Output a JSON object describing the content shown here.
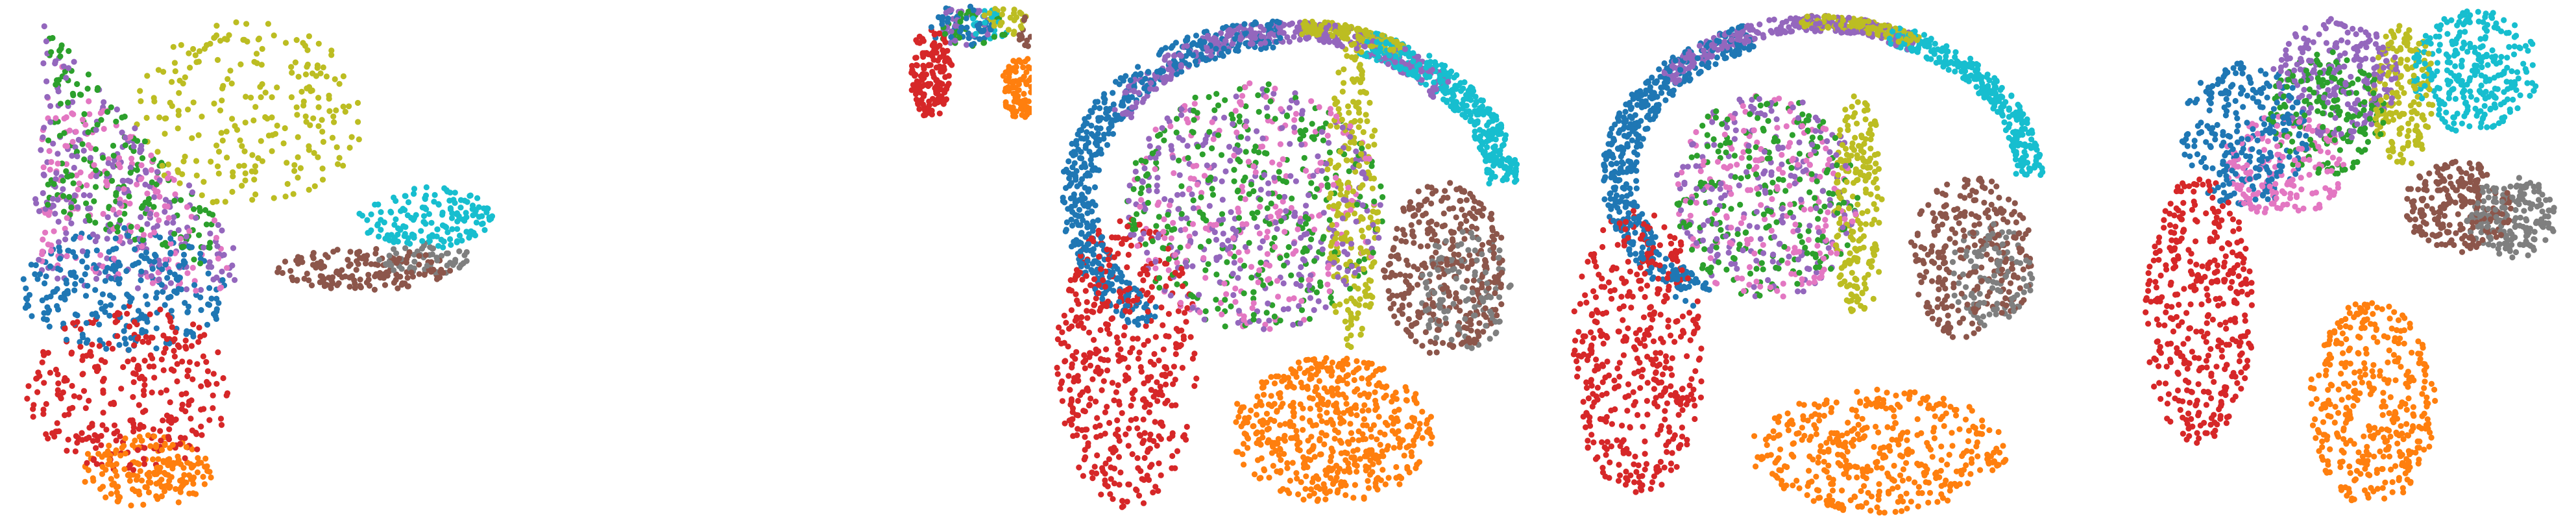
{
  "palette": {
    "blue": "#1f77b4",
    "orange": "#ff7f0e",
    "green": "#2ca02c",
    "red": "#d62728",
    "purple": "#9467bd",
    "brown": "#8c564b",
    "pink": "#e377c2",
    "gray": "#7f7f7f",
    "olive": "#bcbd22",
    "cyan": "#17becf"
  },
  "chart_data": [
    {
      "type": "scatter",
      "title": "",
      "xlabel": "",
      "ylabel": "",
      "axes": "hidden",
      "grid": false,
      "legend": "none",
      "xlim": [
        0,
        100
      ],
      "ylim": [
        0,
        100
      ],
      "clusters": [
        {
          "color": "olive",
          "n": 230,
          "kind": "ellipse",
          "cx": 48,
          "cy": 78,
          "rx": 22,
          "ry": 18
        },
        {
          "color": "cyan",
          "n": 160,
          "kind": "ellipse",
          "cx": 82,
          "cy": 58,
          "rx": 13,
          "ry": 6
        },
        {
          "color": "brown",
          "n": 150,
          "kind": "ellipse",
          "cx": 70,
          "cy": 48,
          "rx": 17,
          "ry": 4
        },
        {
          "color": "gray",
          "n": 60,
          "kind": "ellipse",
          "cx": 82,
          "cy": 50,
          "rx": 9,
          "ry": 3
        },
        {
          "color": "purple",
          "n": 230,
          "kind": "polygon",
          "poly": [
            [
              8,
              96
            ],
            [
              45,
              55
            ],
            [
              46,
              43
            ],
            [
              6,
              45
            ]
          ]
        },
        {
          "color": "pink",
          "n": 170,
          "kind": "polygon",
          "poly": [
            [
              8,
              92
            ],
            [
              44,
              55
            ],
            [
              44,
              42
            ],
            [
              8,
              48
            ]
          ]
        },
        {
          "color": "green",
          "n": 170,
          "kind": "polygon",
          "poly": [
            [
              9,
              95
            ],
            [
              42,
              58
            ],
            [
              40,
              48
            ],
            [
              9,
              60
            ]
          ]
        },
        {
          "color": "blue",
          "n": 260,
          "kind": "ellipse",
          "cx": 24,
          "cy": 44,
          "rx": 20,
          "ry": 12
        },
        {
          "color": "red",
          "n": 300,
          "kind": "ellipse",
          "cx": 25,
          "cy": 25,
          "rx": 20,
          "ry": 16
        },
        {
          "color": "orange",
          "n": 180,
          "kind": "ellipse",
          "cx": 28,
          "cy": 9,
          "rx": 13,
          "ry": 7
        }
      ]
    },
    {
      "type": "scatter",
      "title": "",
      "xlabel": "",
      "ylabel": "",
      "axes": "hidden",
      "grid": false,
      "legend": "none",
      "xlim": [
        0,
        100
      ],
      "ylim": [
        0,
        100
      ],
      "clusters": [
        {
          "color": "blue",
          "n": 50,
          "kind": "ellipse",
          "cx": 70,
          "cy": 95,
          "rx": 14,
          "ry": 4
        },
        {
          "color": "green",
          "n": 30,
          "kind": "ellipse",
          "cx": 75,
          "cy": 94,
          "rx": 14,
          "ry": 4
        },
        {
          "color": "purple",
          "n": 30,
          "kind": "ellipse",
          "cx": 72,
          "cy": 95,
          "rx": 12,
          "ry": 4
        },
        {
          "color": "olive",
          "n": 30,
          "kind": "ellipse",
          "cx": 88,
          "cy": 96,
          "rx": 10,
          "ry": 3
        },
        {
          "color": "cyan",
          "n": 20,
          "kind": "ellipse",
          "cx": 82,
          "cy": 95,
          "rx": 10,
          "ry": 3
        },
        {
          "color": "red",
          "n": 150,
          "kind": "ellipse",
          "cx": 57,
          "cy": 86,
          "rx": 9,
          "ry": 9
        },
        {
          "color": "orange",
          "n": 100,
          "kind": "ellipse",
          "cx": 96,
          "cy": 83,
          "rx": 9,
          "ry": 6
        },
        {
          "color": "brown",
          "n": 15,
          "kind": "ellipse",
          "cx": 98,
          "cy": 94,
          "rx": 4,
          "ry": 3
        }
      ]
    },
    {
      "type": "scatter",
      "title": "",
      "xlabel": "",
      "ylabel": "",
      "axes": "hidden",
      "grid": false,
      "legend": "none",
      "xlim": [
        0,
        100
      ],
      "ylim": [
        0,
        100
      ],
      "clusters": [
        {
          "color": "blue",
          "n": 500,
          "kind": "ring",
          "cx": 48,
          "cy": 62,
          "rx": 43,
          "ry": 34,
          "thick": 0.16,
          "a0": 90,
          "a1": 230
        },
        {
          "color": "purple",
          "n": 300,
          "kind": "ring",
          "cx": 50,
          "cy": 62,
          "rx": 41,
          "ry": 34,
          "thick": 0.12,
          "a0": 40,
          "a1": 150
        },
        {
          "color": "olive",
          "n": 180,
          "kind": "ring",
          "cx": 52,
          "cy": 62,
          "rx": 40,
          "ry": 34,
          "thick": 0.08,
          "a0": 60,
          "a1": 90
        },
        {
          "color": "cyan",
          "n": 350,
          "kind": "ring",
          "cx": 50,
          "cy": 62,
          "rx": 45,
          "ry": 34,
          "thick": 0.14,
          "a0": 5,
          "a1": 70
        },
        {
          "color": "olive",
          "n": 220,
          "kind": "ellipse",
          "cx": 62,
          "cy": 62,
          "rx": 5,
          "ry": 30
        },
        {
          "color": "brown",
          "n": 320,
          "kind": "ellipse",
          "cx": 80,
          "cy": 48,
          "rx": 12,
          "ry": 17
        },
        {
          "color": "gray",
          "n": 120,
          "kind": "ellipse",
          "cx": 84,
          "cy": 44,
          "rx": 9,
          "ry": 12
        },
        {
          "color": "green",
          "n": 300,
          "kind": "ellipse",
          "cx": 43,
          "cy": 60,
          "rx": 25,
          "ry": 24
        },
        {
          "color": "purple",
          "n": 280,
          "kind": "ellipse",
          "cx": 43,
          "cy": 60,
          "rx": 25,
          "ry": 24
        },
        {
          "color": "pink",
          "n": 220,
          "kind": "ellipse",
          "cx": 43,
          "cy": 60,
          "rx": 25,
          "ry": 24
        },
        {
          "color": "red",
          "n": 450,
          "kind": "ellipse",
          "cx": 18,
          "cy": 30,
          "rx": 14,
          "ry": 28
        },
        {
          "color": "orange",
          "n": 520,
          "kind": "ellipse",
          "cx": 58,
          "cy": 17,
          "rx": 20,
          "ry": 14
        }
      ]
    },
    {
      "type": "scatter",
      "title": "",
      "xlabel": "",
      "ylabel": "",
      "axes": "hidden",
      "grid": false,
      "legend": "none",
      "xlim": [
        0,
        100
      ],
      "ylim": [
        0,
        100
      ],
      "clusters": [
        {
          "color": "blue",
          "n": 450,
          "kind": "ring",
          "cx": 52,
          "cy": 66,
          "rx": 42,
          "ry": 31,
          "thick": 0.16,
          "a0": 110,
          "a1": 235
        },
        {
          "color": "purple",
          "n": 260,
          "kind": "ring",
          "cx": 52,
          "cy": 66,
          "rx": 40,
          "ry": 31,
          "thick": 0.1,
          "a0": 60,
          "a1": 140
        },
        {
          "color": "olive",
          "n": 150,
          "kind": "ring",
          "cx": 52,
          "cy": 66,
          "rx": 40,
          "ry": 31,
          "thick": 0.08,
          "a0": 60,
          "a1": 95
        },
        {
          "color": "cyan",
          "n": 280,
          "kind": "ring",
          "cx": 52,
          "cy": 66,
          "rx": 44,
          "ry": 31,
          "thick": 0.12,
          "a0": 0,
          "a1": 70
        },
        {
          "color": "olive",
          "n": 200,
          "kind": "ellipse",
          "cx": 60,
          "cy": 60,
          "rx": 5,
          "ry": 22
        },
        {
          "color": "brown",
          "n": 260,
          "kind": "ellipse",
          "cx": 82,
          "cy": 50,
          "rx": 12,
          "ry": 16
        },
        {
          "color": "gray",
          "n": 110,
          "kind": "ellipse",
          "cx": 86,
          "cy": 47,
          "rx": 8,
          "ry": 10
        },
        {
          "color": "green",
          "n": 220,
          "kind": "ellipse",
          "cx": 42,
          "cy": 62,
          "rx": 18,
          "ry": 20
        },
        {
          "color": "purple",
          "n": 200,
          "kind": "ellipse",
          "cx": 42,
          "cy": 62,
          "rx": 18,
          "ry": 20
        },
        {
          "color": "pink",
          "n": 180,
          "kind": "ellipse",
          "cx": 42,
          "cy": 62,
          "rx": 18,
          "ry": 20
        },
        {
          "color": "red",
          "n": 420,
          "kind": "ellipse",
          "cx": 17,
          "cy": 32,
          "rx": 13,
          "ry": 28
        },
        {
          "color": "orange",
          "n": 420,
          "kind": "ellipse",
          "cx": 64,
          "cy": 13,
          "rx": 25,
          "ry": 12
        }
      ]
    },
    {
      "type": "scatter",
      "title": "",
      "xlabel": "",
      "ylabel": "",
      "axes": "hidden",
      "grid": false,
      "legend": "none",
      "xlim": [
        0,
        100
      ],
      "ylim": [
        0,
        100
      ],
      "clusters": [
        {
          "color": "cyan",
          "n": 280,
          "kind": "ellipse",
          "cx": 78,
          "cy": 86,
          "rx": 14,
          "ry": 12
        },
        {
          "color": "olive",
          "n": 180,
          "kind": "ellipse",
          "cx": 62,
          "cy": 82,
          "rx": 7,
          "ry": 14
        },
        {
          "color": "purple",
          "n": 220,
          "kind": "ellipse",
          "cx": 47,
          "cy": 85,
          "rx": 14,
          "ry": 12
        },
        {
          "color": "green",
          "n": 180,
          "kind": "ellipse",
          "cx": 45,
          "cy": 78,
          "rx": 13,
          "ry": 12
        },
        {
          "color": "blue",
          "n": 260,
          "kind": "ellipse",
          "cx": 27,
          "cy": 74,
          "rx": 14,
          "ry": 14
        },
        {
          "color": "pink",
          "n": 170,
          "kind": "ellipse",
          "cx": 36,
          "cy": 68,
          "rx": 14,
          "ry": 10
        },
        {
          "color": "brown",
          "n": 220,
          "kind": "ellipse",
          "cx": 74,
          "cy": 60,
          "rx": 12,
          "ry": 9
        },
        {
          "color": "gray",
          "n": 180,
          "kind": "ellipse",
          "cx": 86,
          "cy": 58,
          "rx": 10,
          "ry": 8
        },
        {
          "color": "red",
          "n": 380,
          "kind": "ellipse",
          "cx": 17,
          "cy": 40,
          "rx": 12,
          "ry": 26
        },
        {
          "color": "orange",
          "n": 380,
          "kind": "ellipse",
          "cx": 55,
          "cy": 22,
          "rx": 14,
          "ry": 20
        }
      ]
    }
  ]
}
